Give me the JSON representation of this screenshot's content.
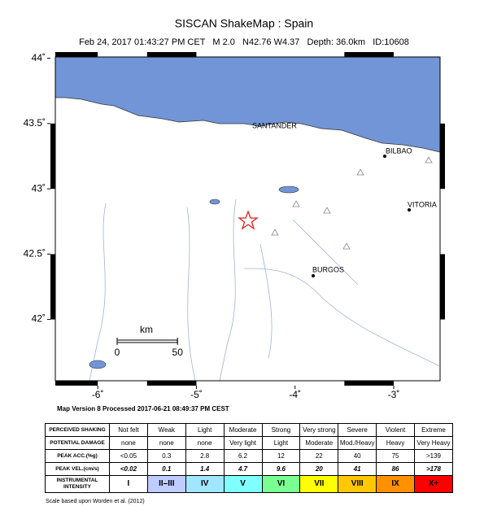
{
  "header": {
    "title": "SISCAN ShakeMap : Spain",
    "subtitle": "Feb 24, 2017 01:43:27 PM CET   M 2.0   N42.76 W4.37   Depth: 36.0km   ID:10608"
  },
  "map": {
    "lonlim": [
      -6.43,
      -2.53
    ],
    "latlim": [
      41.53,
      44.01
    ],
    "lon_ticks": [
      {
        "value": -6,
        "label": "-6˚"
      },
      {
        "value": -5,
        "label": "-5˚"
      },
      {
        "value": -4,
        "label": "-4˚"
      },
      {
        "value": -3,
        "label": "-3˚"
      }
    ],
    "lat_ticks": [
      {
        "value": 42,
        "label": "42˚"
      },
      {
        "value": 42.5,
        "label": "42.5˚"
      },
      {
        "value": 43,
        "label": "43˚"
      },
      {
        "value": 43.5,
        "label": "43.5˚"
      },
      {
        "value": 44,
        "label": "44˚"
      }
    ],
    "cities": [
      "SANTANDER",
      "BILBAO",
      "VITORIA",
      "BURGOS"
    ],
    "scale_bar": {
      "unit": "km",
      "ticks": [
        0,
        50
      ]
    },
    "version": "Map Version 8 Processed 2017-06-21 08:49:37 PM CEST"
  },
  "table": {
    "rows": [
      [
        "PERCEIVED SHAKING",
        "Not felt",
        "Weak",
        "Light",
        "Moderate",
        "Strong",
        "Very strong",
        "Severe",
        "Violent",
        "Extreme"
      ],
      [
        "POTENTIAL DAMAGE",
        "none",
        "none",
        "none",
        "Very light",
        "Light",
        "Moderate",
        "Mod./Heavy",
        "Heavy",
        "Very Heavy"
      ],
      [
        "PEAK ACC.(%g)",
        "<0.05",
        "0.3",
        "2.8",
        "6.2",
        "12",
        "22",
        "40",
        "75",
        ">139"
      ],
      [
        "PEAK VEL.(cm/s)",
        "<0.02",
        "0.1",
        "1.4",
        "4.7",
        "9.6",
        "20",
        "41",
        "86",
        ">178"
      ],
      [
        "INSTRUMENTAL INTENSITY",
        "I",
        "II–III",
        "IV",
        "V",
        "VI",
        "VII",
        "VIII",
        "IX",
        "X+"
      ]
    ],
    "intensity_colors": [
      "#ffffff",
      "#bfccff",
      "#a0e6ff",
      "#80ffff",
      "#7aff93",
      "#ffff00",
      "#ffc800",
      "#ff9100",
      "#ff0000"
    ]
  },
  "footnote": "Scale based upon Worden et al. (2012)"
}
